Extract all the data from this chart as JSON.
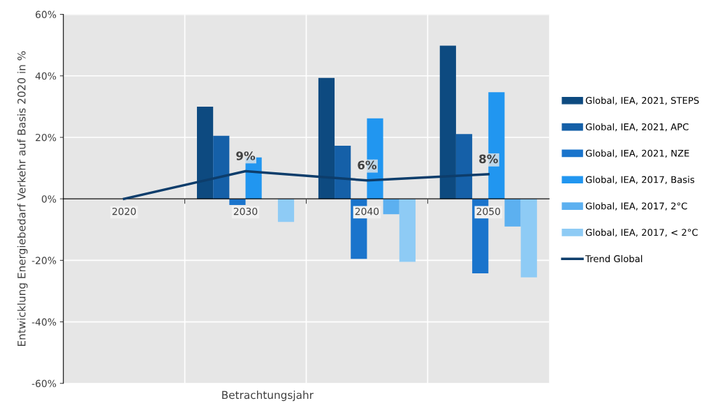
{
  "chart_data": {
    "type": "bar",
    "xlabel": "Betrachtungsjahr",
    "ylabel": "Entwicklung Energiebedarf Verkehr auf Basis 2020 in %",
    "categories": [
      "2020",
      "2030",
      "2040",
      "2050"
    ],
    "series": [
      {
        "name": "Global, IEA, 2021, STEPS",
        "color": "#0d4a80",
        "values": [
          null,
          30,
          39.3,
          49.8
        ]
      },
      {
        "name": "Global, IEA, 2021, APC",
        "color": "#1560a8",
        "values": [
          null,
          20.5,
          17.3,
          21.1
        ]
      },
      {
        "name": "Global, IEA, 2021, NZE",
        "color": "#1a74cc",
        "values": [
          null,
          -2,
          -19.5,
          -24.2
        ]
      },
      {
        "name": "Global, IEA, 2017, Basis",
        "color": "#2196f0",
        "values": [
          null,
          13.5,
          26.2,
          34.7
        ]
      },
      {
        "name": "Global, IEA, 2017, 2°C",
        "color": "#5cb0f0",
        "values": [
          null,
          null,
          -5,
          -9
        ]
      },
      {
        "name": "Global, IEA, 2017, < 2°C",
        "color": "#8ecbf5",
        "values": [
          null,
          -7.5,
          -20.5,
          -25.5
        ]
      },
      {
        "name": "Trend Global",
        "type": "line",
        "color": "#0d3d6b",
        "values": [
          0,
          9,
          6,
          8
        ],
        "value_labels": [
          null,
          "9%",
          "6%",
          "8%"
        ]
      }
    ],
    "ylim": [
      -60,
      60
    ],
    "yticks": [
      {
        "value": -60,
        "label": "-60%"
      },
      {
        "value": -40,
        "label": "-40%"
      },
      {
        "value": -20,
        "label": "-20%"
      },
      {
        "value": 0,
        "label": "0%"
      },
      {
        "value": 20,
        "label": "20%"
      },
      {
        "value": 40,
        "label": "40%"
      },
      {
        "value": 60,
        "label": "60%"
      }
    ],
    "grid": true,
    "legend": "right",
    "marker": "none"
  }
}
